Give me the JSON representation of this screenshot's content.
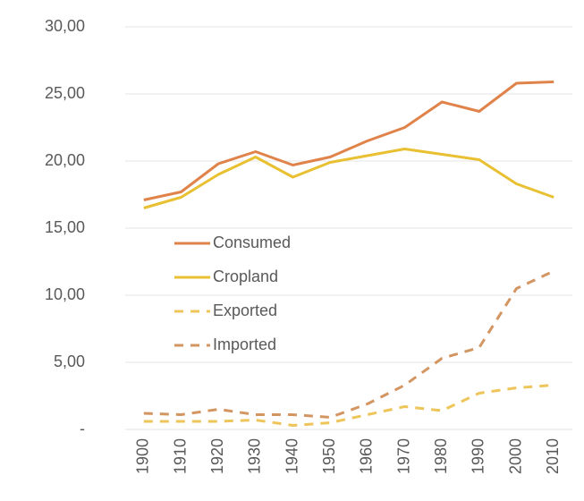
{
  "chart_data": {
    "type": "line",
    "categories": [
      "1900",
      "1910",
      "1920",
      "1930",
      "1940",
      "1950",
      "1960",
      "1970",
      "1980",
      "1990",
      "2000",
      "2010"
    ],
    "series": [
      {
        "name": "Consumed",
        "color": "#e0834a",
        "dashed": false,
        "values": [
          17.1,
          17.7,
          19.8,
          20.7,
          19.7,
          20.3,
          21.5,
          22.5,
          24.4,
          23.7,
          25.8,
          25.9
        ]
      },
      {
        "name": "Cropland",
        "color": "#e9c032",
        "dashed": false,
        "values": [
          16.5,
          17.3,
          19.0,
          20.3,
          18.8,
          19.9,
          20.4,
          20.9,
          20.5,
          20.1,
          18.3,
          17.3
        ]
      },
      {
        "name": "Exported",
        "color": "#eec55a",
        "dashed": true,
        "values": [
          0.6,
          0.6,
          0.6,
          0.7,
          0.3,
          0.5,
          1.1,
          1.7,
          1.4,
          2.7,
          3.1,
          3.3
        ]
      },
      {
        "name": "Imported",
        "color": "#d39561",
        "dashed": true,
        "values": [
          1.2,
          1.1,
          1.5,
          1.1,
          1.1,
          0.9,
          1.9,
          3.3,
          5.3,
          6.1,
          10.5,
          11.8
        ]
      }
    ],
    "ylim": [
      0,
      30
    ],
    "yticks": [
      {
        "value": 0,
        "label": "-"
      },
      {
        "value": 5,
        "label": "5,00"
      },
      {
        "value": 10,
        "label": "10,00"
      },
      {
        "value": 15,
        "label": "15,00"
      },
      {
        "value": 20,
        "label": "20,00"
      },
      {
        "value": 25,
        "label": "25,00"
      },
      {
        "value": 30,
        "label": "30,00"
      }
    ],
    "grid": true,
    "legend": "left"
  }
}
